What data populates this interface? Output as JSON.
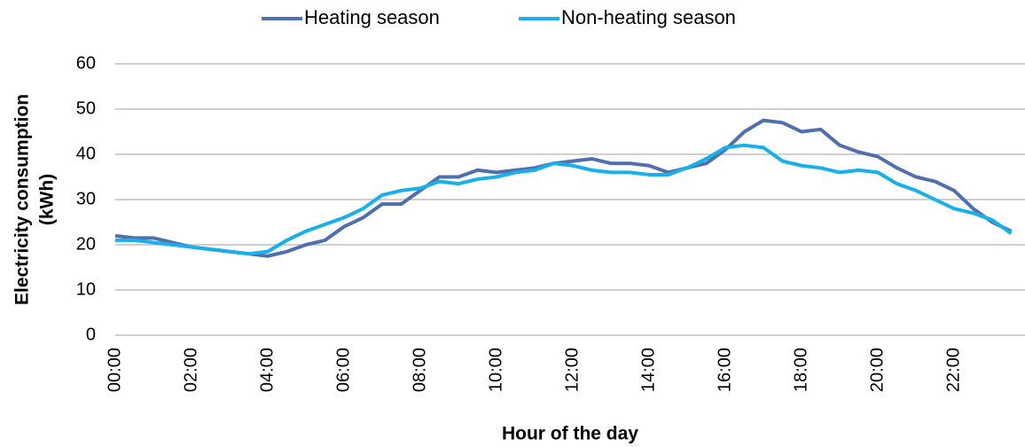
{
  "chart_data": {
    "type": "line",
    "x_label": "Hour of the day",
    "y_label": [
      "Electricity consumption",
      "(kWh)"
    ],
    "categories": [
      "00:00",
      null,
      null,
      null,
      "02:00",
      null,
      null,
      null,
      "04:00",
      null,
      null,
      null,
      "06:00",
      null,
      null,
      null,
      "08:00",
      null,
      null,
      null,
      "10:00",
      null,
      null,
      null,
      "12:00",
      null,
      null,
      null,
      "14:00",
      null,
      null,
      null,
      "16:00",
      null,
      null,
      null,
      "18:00",
      null,
      null,
      null,
      "20:00",
      null,
      null,
      null,
      "22:00",
      null,
      null,
      null
    ],
    "series": [
      {
        "name": "Heating season",
        "color": "#4f6fae",
        "values": [
          22,
          21.5,
          21.5,
          20.5,
          19.5,
          19,
          18.5,
          18,
          17.5,
          18.5,
          20,
          21,
          24,
          26,
          29,
          29,
          32,
          35,
          35,
          36.5,
          36,
          36.5,
          37,
          38,
          38.5,
          39,
          38,
          38,
          37.5,
          36,
          37,
          38,
          41,
          45,
          47.5,
          47,
          45,
          45.5,
          42,
          40.5,
          39.5,
          37,
          35,
          34,
          32,
          28,
          25,
          23
        ]
      },
      {
        "name": "Non-heating season",
        "color": "#17b0ea",
        "values": [
          21,
          21,
          20.5,
          20,
          19.5,
          19,
          18.5,
          18,
          18.5,
          21,
          23,
          24.5,
          26,
          28,
          31,
          32,
          32.5,
          34,
          33.5,
          34.5,
          35,
          36,
          36.5,
          38,
          37.5,
          36.5,
          36,
          36,
          35.5,
          35.5,
          37,
          39,
          41.5,
          42,
          41.5,
          38.5,
          37.5,
          37,
          36,
          36.5,
          36,
          33.5,
          32,
          30,
          28,
          27,
          25.5,
          22.5
        ]
      }
    ],
    "ylim": [
      0,
      60
    ],
    "yticks": [
      0,
      10,
      20,
      30,
      40,
      50,
      60
    ],
    "grid": true
  }
}
